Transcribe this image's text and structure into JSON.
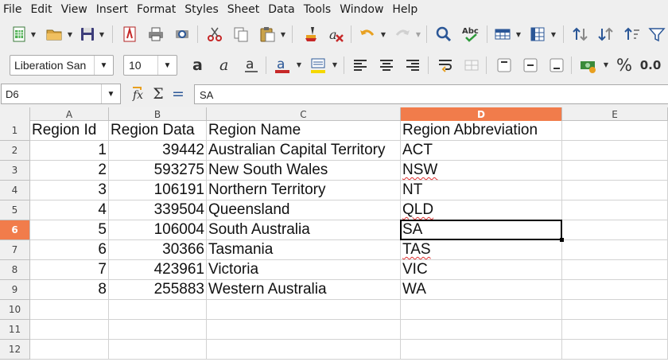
{
  "menu": [
    "File",
    "Edit",
    "View",
    "Insert",
    "Format",
    "Styles",
    "Sheet",
    "Data",
    "Tools",
    "Window",
    "Help"
  ],
  "format_bar": {
    "font_name": "Liberation San",
    "font_size": "10",
    "percent_label": "%",
    "number_label": "0.0"
  },
  "formula_bar": {
    "cell_ref": "D6",
    "content": "SA",
    "sigma": "Σ",
    "equals": "="
  },
  "columns": [
    "A",
    "B",
    "C",
    "D",
    "E"
  ],
  "selected": {
    "column": "D",
    "row": "6"
  },
  "rows": [
    {
      "num": "1",
      "a": "Region Id",
      "b": "Region Data",
      "c": "Region Name",
      "d": "Region Abbreviation"
    },
    {
      "num": "2",
      "a": "1",
      "b": "39442",
      "c": "Australian Capital Territory",
      "d": "ACT"
    },
    {
      "num": "3",
      "a": "2",
      "b": "593275",
      "c": "New South Wales",
      "d": "NSW"
    },
    {
      "num": "4",
      "a": "3",
      "b": "106191",
      "c": "Northern Territory",
      "d": "NT"
    },
    {
      "num": "5",
      "a": "4",
      "b": "339504",
      "c": "Queensland",
      "d": "QLD"
    },
    {
      "num": "6",
      "a": "5",
      "b": "106004",
      "c": "South Australia",
      "d": "SA"
    },
    {
      "num": "7",
      "a": "6",
      "b": "30366",
      "c": "Tasmania",
      "d": "TAS"
    },
    {
      "num": "8",
      "a": "7",
      "b": "423961",
      "c": "Victoria",
      "d": "VIC"
    },
    {
      "num": "9",
      "a": "8",
      "b": "255883",
      "c": "Western Australia",
      "d": "WA"
    },
    {
      "num": "10",
      "a": "",
      "b": "",
      "c": "",
      "d": ""
    },
    {
      "num": "11",
      "a": "",
      "b": "",
      "c": "",
      "d": ""
    },
    {
      "num": "12",
      "a": "",
      "b": "",
      "c": "",
      "d": ""
    }
  ],
  "colors": {
    "accent": "#f17c4b"
  }
}
